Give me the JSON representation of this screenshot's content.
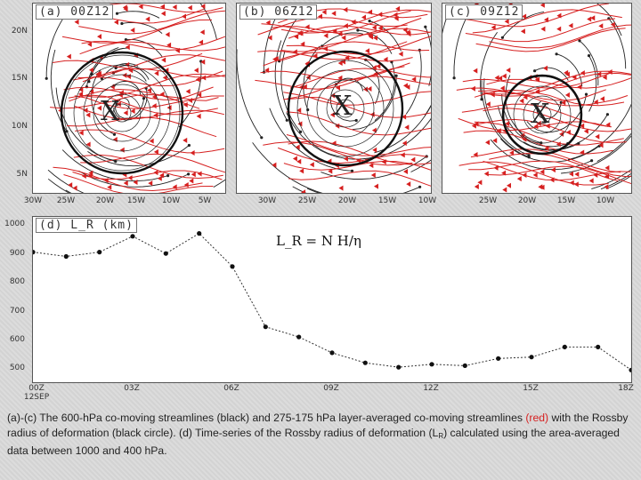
{
  "panels": [
    {
      "title": "(a) 00Z12",
      "xlabels": [
        "30W",
        "25W",
        "20W",
        "15W",
        "10W",
        "5W"
      ],
      "ylabels": [
        "20N",
        "15N",
        "10N",
        "5N"
      ],
      "circle": {
        "lon": -19.2,
        "lat": 11.9,
        "r_deg": 6.5
      }
    },
    {
      "title": "(b) 06Z12",
      "xlabels": [
        "30W",
        "25W",
        "20W",
        "15W",
        "10W"
      ],
      "circle": {
        "lon": -22.5,
        "lat": 12.2,
        "r_deg": 6.3
      }
    },
    {
      "title": "(c) 09Z12",
      "xlabels": [
        "25W",
        "20W",
        "15W",
        "10W"
      ],
      "circle": {
        "lon": -20.0,
        "lat": 12.0,
        "r_deg": 4.3
      }
    }
  ],
  "center_marker": "X",
  "colors": {
    "black_streamlines": "#222222",
    "red_streamlines": "#d62020",
    "circle": "#111111"
  },
  "chart_data": {
    "type": "line",
    "title": "(d) L_R (km)",
    "annotation": "L_R = N H/η",
    "x": [
      "00Z",
      "01Z",
      "02Z",
      "03Z",
      "04Z",
      "05Z",
      "06Z",
      "07Z",
      "08Z",
      "09Z",
      "10Z",
      "11Z",
      "12Z",
      "13Z",
      "14Z",
      "15Z",
      "16Z",
      "17Z",
      "18Z"
    ],
    "xticks": [
      "00Z",
      "03Z",
      "06Z",
      "09Z",
      "12Z",
      "15Z",
      "18Z"
    ],
    "x_start_label": "12SEP",
    "values": [
      910,
      895,
      910,
      965,
      905,
      975,
      860,
      650,
      615,
      560,
      525,
      510,
      520,
      515,
      540,
      545,
      580,
      580,
      500
    ],
    "yticks": [
      500,
      600,
      700,
      800,
      900,
      1000
    ],
    "ylim": [
      470,
      1020
    ],
    "grid": false
  },
  "caption": {
    "part1": "(a)-(c) The 600-hPa co-moving streamlines (black) and 275-175 hPa layer-averaged co-moving streamlines",
    "red_word": "(red)",
    "part2": " with the Rossby radius of deformation (black circle). (d) Time-series of the Rossby radius of deformation",
    "lr_open": "(L",
    "lr_sub": "R",
    "part3": ") calculated using the area-averaged data between 1000 and 400 hPa."
  }
}
